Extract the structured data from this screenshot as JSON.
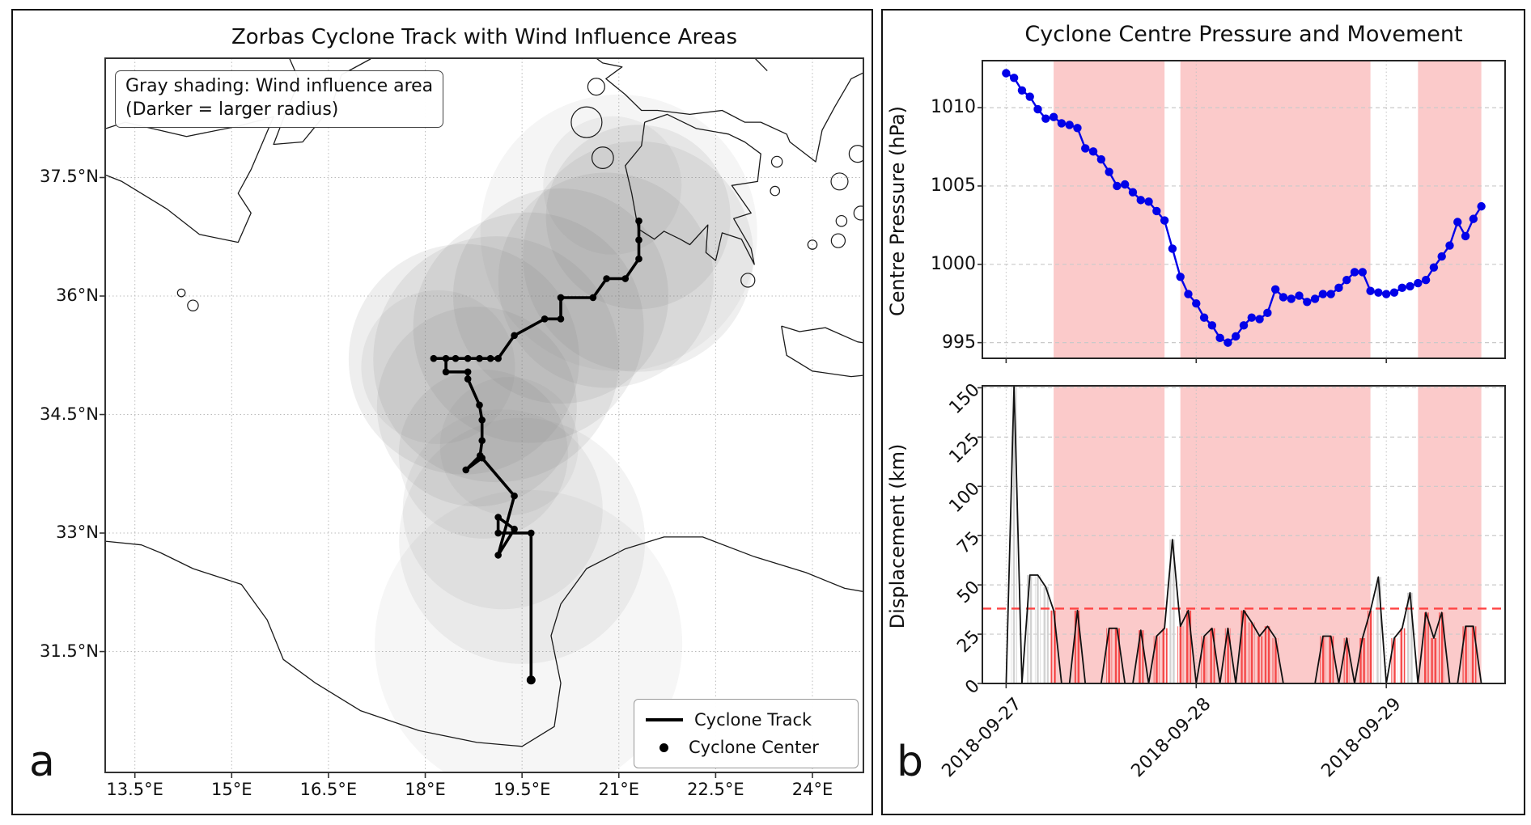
{
  "panel_a": {
    "label": "a",
    "title": "Zorbas Cyclone Track with Wind Influence Areas",
    "annotation_line1": "Gray shading: Wind influence area",
    "annotation_line2": "(Darker = larger radius)",
    "legend": {
      "track_label": "Cyclone Track",
      "center_label": "Cyclone Center"
    },
    "x_ticks": [
      "13.5°E",
      "15°E",
      "16.5°E",
      "18°E",
      "19.5°E",
      "21°E",
      "22.5°E",
      "24°E"
    ],
    "x_tick_lons": [
      13.5,
      15,
      16.5,
      18,
      19.5,
      21,
      22.5,
      24
    ],
    "y_ticks": [
      "37.5°N",
      "36°N",
      "34.5°N",
      "33°N",
      "31.5°N"
    ],
    "y_tick_lats": [
      37.5,
      36,
      34.5,
      33,
      31.5
    ],
    "extent": {
      "lon_min": 13.04,
      "lon_max": 24.79,
      "lat_min": 29.97,
      "lat_max": 39.01
    },
    "track": [
      [
        19.64,
        31.14
      ],
      [
        19.64,
        33.0
      ],
      [
        19.13,
        33.0
      ],
      [
        19.13,
        33.2
      ],
      [
        19.38,
        33.05
      ],
      [
        19.13,
        32.72
      ],
      [
        19.38,
        33.47
      ],
      [
        18.88,
        33.95
      ],
      [
        18.63,
        33.8
      ],
      [
        18.85,
        33.98
      ],
      [
        18.88,
        34.17
      ],
      [
        18.88,
        34.43
      ],
      [
        18.84,
        34.62
      ],
      [
        18.66,
        34.95
      ],
      [
        18.66,
        35.04
      ],
      [
        18.32,
        35.04
      ],
      [
        18.32,
        35.21
      ],
      [
        18.13,
        35.21
      ],
      [
        18.47,
        35.21
      ],
      [
        18.66,
        35.21
      ],
      [
        18.84,
        35.21
      ],
      [
        19.01,
        35.21
      ],
      [
        19.13,
        35.21
      ],
      [
        19.38,
        35.5
      ],
      [
        19.85,
        35.71
      ],
      [
        20.1,
        35.71
      ],
      [
        20.1,
        35.98
      ],
      [
        20.6,
        35.98
      ],
      [
        20.81,
        36.22
      ],
      [
        21.1,
        36.22
      ],
      [
        21.31,
        36.47
      ],
      [
        21.31,
        36.71
      ],
      [
        21.31,
        36.95
      ]
    ],
    "influence_circles": [
      [
        19.6,
        31.6,
        2.0,
        0.07
      ],
      [
        19.5,
        32.9,
        1.6,
        0.09
      ],
      [
        19.2,
        33.3,
        1.3,
        0.1
      ],
      [
        18.9,
        34.0,
        1.1,
        0.11
      ],
      [
        18.8,
        34.6,
        1.3,
        0.12
      ],
      [
        18.6,
        35.2,
        1.5,
        0.13
      ],
      [
        19.1,
        35.2,
        1.6,
        0.13
      ],
      [
        19.6,
        35.6,
        1.5,
        0.13
      ],
      [
        20.1,
        36.0,
        1.4,
        0.13
      ],
      [
        20.8,
        36.2,
        1.4,
        0.12
      ],
      [
        21.3,
        36.5,
        1.5,
        0.12
      ],
      [
        21.3,
        37.0,
        1.2,
        0.12
      ],
      [
        20.9,
        37.4,
        0.9,
        0.09
      ],
      [
        18.2,
        35.1,
        1.0,
        0.1
      ],
      [
        19.3,
        34.1,
        0.9,
        0.09
      ],
      [
        21.0,
        36.8,
        1.8,
        0.08
      ]
    ]
  },
  "panel_b": {
    "label": "b",
    "title": "Cyclone Centre Pressure and Movement",
    "pressure_ylabel": "Centre Pressure (hPa)",
    "displacement_ylabel": "Displacement (km)",
    "pressure_yticks": [
      1010,
      1005,
      1000,
      995
    ],
    "displacement_yticks": [
      150,
      125,
      100,
      75,
      50,
      25,
      0
    ],
    "x_tick_labels": [
      "2018-09-27",
      "2018-09-28",
      "2018-09-29"
    ]
  },
  "colors": {
    "band": "#fbcaca",
    "blue_line": "#0202e8",
    "red_bar": "#f54949",
    "gray_bar": "#d2d2d2",
    "threshold": "#ff4343",
    "grid": "#c9c9c9",
    "coast": "#1a1a1a",
    "influence_gray": "#7d7d7d"
  },
  "chart_data": [
    {
      "type": "line",
      "title": "Cyclone Centre Pressure and Movement",
      "ylabel": "Centre Pressure (hPa)",
      "x_unit": "hours since 2018-09-27 00:00",
      "x": [
        0,
        1,
        2,
        3,
        4,
        5,
        6,
        7,
        8,
        9,
        10,
        11,
        12,
        13,
        14,
        15,
        16,
        17,
        18,
        19,
        20,
        21,
        22,
        23,
        24,
        25,
        26,
        27,
        28,
        29,
        30,
        31,
        32,
        33,
        34,
        35,
        36,
        37,
        38,
        39,
        40,
        41,
        42,
        43,
        44,
        45,
        46,
        47,
        48,
        49,
        50,
        51,
        52,
        53,
        54,
        55,
        56,
        57,
        58,
        59,
        60
      ],
      "values": [
        1012.2,
        1011.9,
        1011.1,
        1010.7,
        1009.9,
        1009.3,
        1009.4,
        1009.0,
        1008.9,
        1008.7,
        1007.4,
        1007.2,
        1006.7,
        1005.9,
        1005.0,
        1005.1,
        1004.6,
        1004.1,
        1004.0,
        1003.4,
        1002.8,
        1001.0,
        999.2,
        998.1,
        997.5,
        996.6,
        996.1,
        995.3,
        995.0,
        995.4,
        996.1,
        996.6,
        996.5,
        996.9,
        998.4,
        997.9,
        997.8,
        998.0,
        997.6,
        997.8,
        998.1,
        998.1,
        998.5,
        999.0,
        999.5,
        999.5,
        998.3,
        998.2,
        998.1,
        998.2,
        998.5,
        998.6,
        998.8,
        999.0,
        999.8,
        1000.5,
        1001.2,
        1002.7,
        1001.8,
        1002.9,
        1003.7
      ],
      "ylim": [
        994,
        1013
      ],
      "yticks": [
        995,
        1000,
        1005,
        1010
      ],
      "xlim_hours": [
        -3,
        63
      ],
      "xtick_hours": [
        0,
        24,
        48
      ],
      "xtick_labels": [
        "2018-09-27",
        "2018-09-28",
        "2018-09-29"
      ],
      "shaded_bands_hours": [
        [
          6,
          20
        ],
        [
          22,
          46
        ],
        [
          52,
          60
        ]
      ],
      "grid": true
    },
    {
      "type": "bar",
      "ylabel": "Displacement (km)",
      "x_unit": "hours since 2018-09-27 00:00",
      "values": [
        0,
        152,
        0,
        55,
        55,
        49,
        37,
        0,
        0,
        37,
        0,
        0,
        0,
        28,
        28,
        0,
        0,
        27,
        0,
        24,
        28,
        73,
        29,
        37,
        0,
        24,
        28,
        0,
        28,
        0,
        37,
        31,
        24,
        29,
        23,
        0,
        0,
        0,
        0,
        0,
        24,
        24,
        0,
        23,
        0,
        23,
        37,
        54,
        0,
        23,
        28,
        46,
        0,
        36,
        23,
        36,
        0,
        0,
        29,
        29,
        0
      ],
      "ylim": [
        0,
        151
      ],
      "yticks": [
        0,
        25,
        50,
        75,
        100,
        125,
        150
      ],
      "threshold_km": 38,
      "bar_rule": "red hatch if value below threshold, gray hatch if above",
      "shaded_bands_hours": [
        [
          6,
          20
        ],
        [
          22,
          46
        ],
        [
          52,
          60
        ]
      ],
      "grid": true
    }
  ]
}
